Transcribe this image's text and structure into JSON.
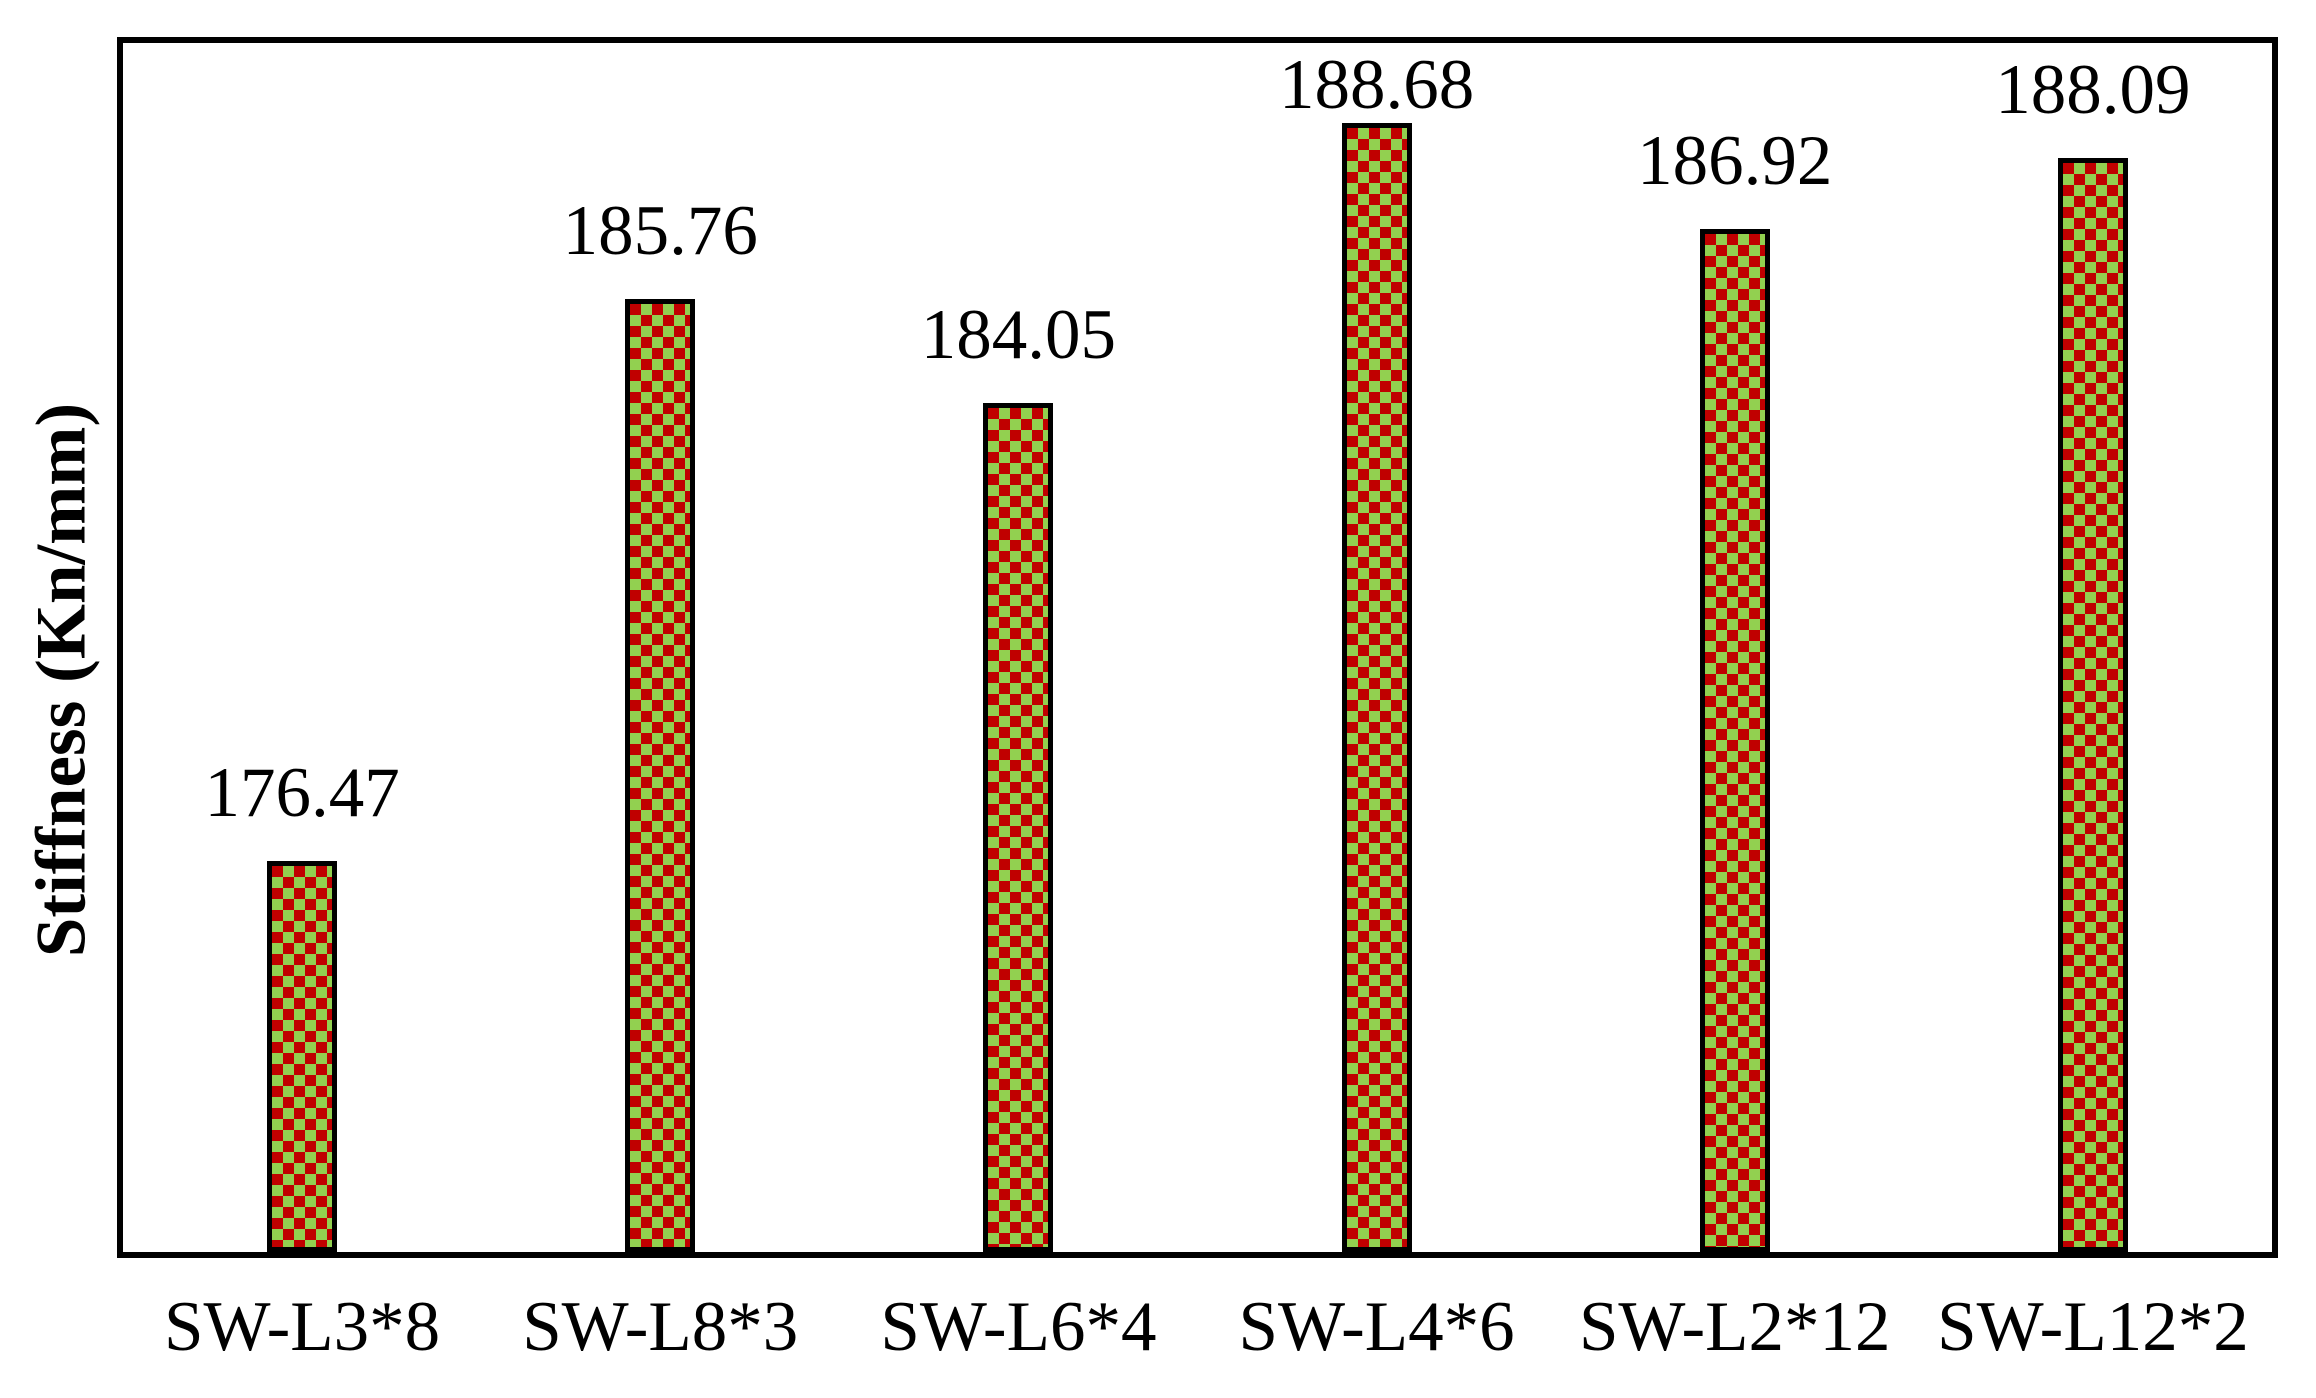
{
  "chart_data": {
    "type": "bar",
    "ylabel": "Stiffness (Kn/mm)",
    "categories": [
      "SW-L3*8",
      "SW-L8*3",
      "SW-L6*4",
      "SW-L4*6",
      "SW-L2*12",
      "SW-L12*2"
    ],
    "values": [
      176.47,
      185.76,
      184.05,
      188.68,
      186.92,
      188.09
    ],
    "value_labels": [
      "176.47",
      "185.76",
      "184.05",
      "188.68",
      "186.92",
      "188.09"
    ],
    "ylim": [
      170,
      190
    ],
    "grid": false,
    "legend": false,
    "y_ticks_visible": false,
    "bar_pattern": "checkerboard",
    "colors": {
      "checker_red": "#C00000",
      "checker_green": "#92D050",
      "bar_border": "#000000",
      "axis": "#000000",
      "text": "#000000",
      "background": "#FFFFFF"
    }
  }
}
